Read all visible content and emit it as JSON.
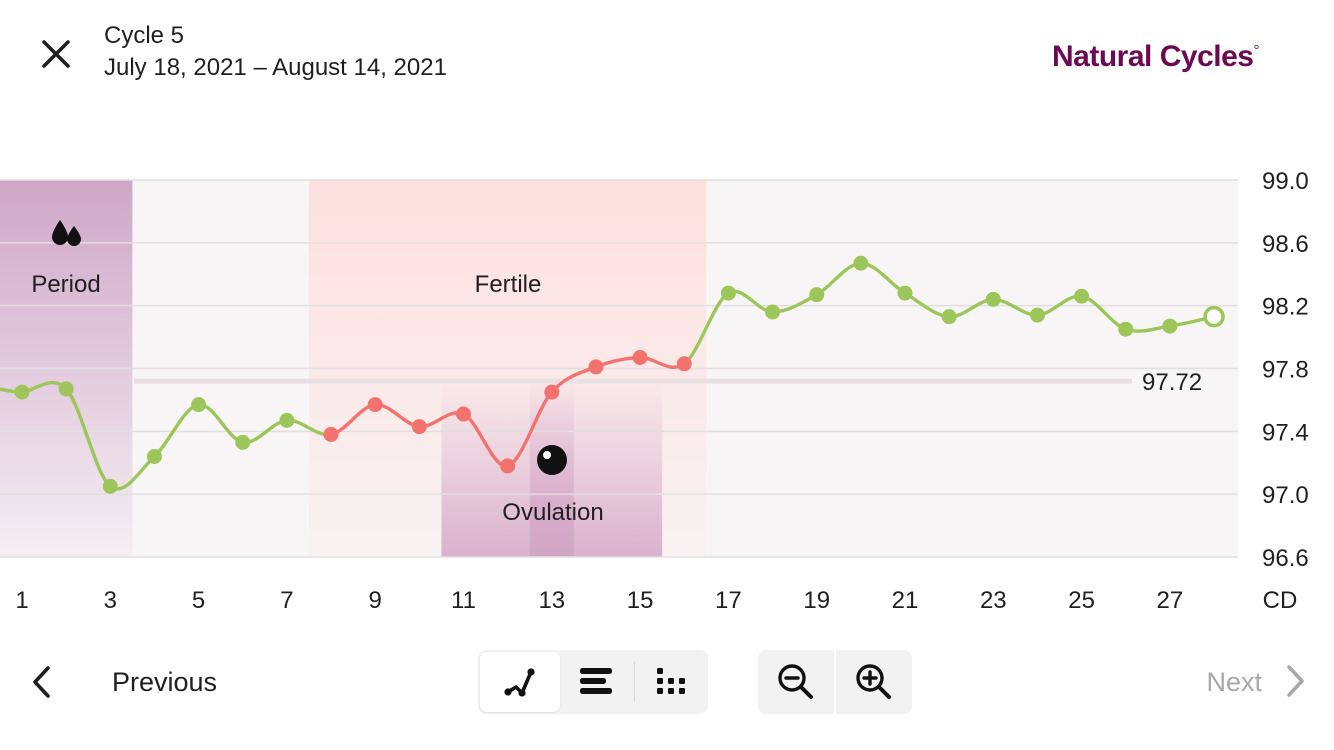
{
  "header": {
    "close_icon": "close-icon",
    "cycle_title": "Cycle 5",
    "cycle_dates": "July 18, 2021 – August 14, 2021",
    "brand": "Natural Cycles",
    "brand_mark": "°"
  },
  "colors": {
    "brand": "#6b0a52",
    "green_line": "#9cc65a",
    "red_line": "#f2726e",
    "period_band": "#cfa7c8",
    "fertile_band": "#fde0df",
    "ovulation_band": "#d4a6c6",
    "plot_bg": "#f8f5f6"
  },
  "chart_data": {
    "type": "line",
    "x": [
      1,
      2,
      3,
      4,
      5,
      6,
      7,
      8,
      9,
      10,
      11,
      12,
      13,
      14,
      15,
      16,
      17,
      18,
      19,
      20,
      21,
      22,
      23,
      24,
      25,
      26,
      27,
      28
    ],
    "series": [
      {
        "values": [
          97.65,
          97.67,
          97.05,
          97.24,
          97.57,
          97.33,
          97.47,
          97.38,
          97.57,
          97.43,
          97.51,
          97.18,
          97.65,
          97.81,
          97.87,
          97.83,
          98.28,
          98.16,
          98.27,
          98.47,
          98.28,
          98.13,
          98.24,
          98.14,
          98.26,
          98.05,
          98.07,
          98.13
        ]
      }
    ],
    "fertile_days": [
      8,
      9,
      10,
      11,
      12,
      13,
      14,
      15,
      16
    ],
    "open_point_day": 28,
    "coverline": 97.72,
    "coverline_label": "97.72",
    "yticks": [
      "99.0",
      "98.6",
      "98.2",
      "97.8",
      "97.4",
      "97.0",
      "96.6"
    ],
    "ylim": [
      96.6,
      99.0
    ],
    "xticks": [
      "1",
      "3",
      "5",
      "7",
      "9",
      "11",
      "13",
      "15",
      "17",
      "19",
      "21",
      "23",
      "25",
      "27"
    ],
    "xlabel": "CD",
    "xlim": [
      0.5,
      28.5
    ],
    "bands": {
      "period": {
        "from": 0.5,
        "to": 3.5,
        "label": "Period",
        "icon": "drops-icon"
      },
      "fertile": {
        "from": 7.5,
        "to": 16.5,
        "label": "Fertile"
      },
      "ovulation_window": {
        "from": 10.5,
        "to": 15.5
      },
      "ovulation_day": {
        "from": 12.5,
        "to": 13.5,
        "label": "Ovulation",
        "icon": "egg-icon"
      }
    }
  },
  "footer": {
    "prev_label": "Previous",
    "next_label": "Next",
    "view_modes": [
      "graph-view",
      "bar-view",
      "dots-view"
    ],
    "active_view": "graph-view",
    "zoom_out_icon": "zoom-out-icon",
    "zoom_in_icon": "zoom-in-icon"
  }
}
